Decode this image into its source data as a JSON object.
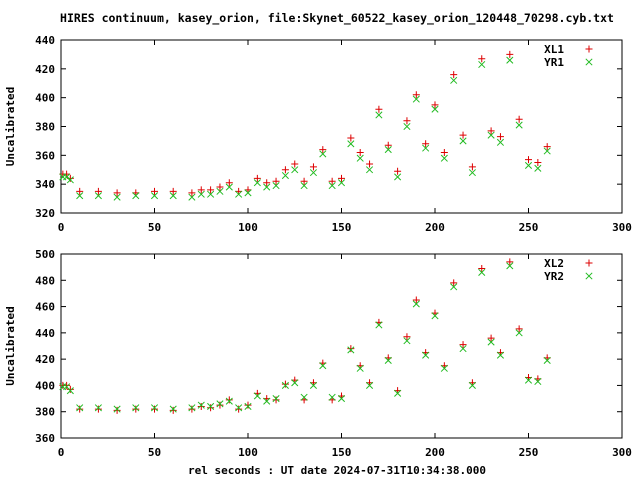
{
  "title": "HIRES continuum, kasey_orion, file:Skynet_60522_kasey_orion_120448_70298.cyb.txt",
  "xlabel": "rel seconds : UT date 2024-07-31T10:34:38.000",
  "colors": {
    "plus_series": "#dd0000",
    "x_series": "#22bb22"
  },
  "chart_data": [
    {
      "type": "scatter",
      "ylabel": "Uncalibrated",
      "xlim": [
        0,
        300
      ],
      "ylim": [
        320,
        440
      ],
      "xticks": [
        "0",
        "50",
        "100",
        "150",
        "200",
        "250",
        "300"
      ],
      "yticks": [
        "320",
        "340",
        "360",
        "380",
        "400",
        "420",
        "440"
      ],
      "legend_position": "top-right",
      "grid": false,
      "series": [
        {
          "name": "XL1",
          "marker": "plus",
          "x": [
            1,
            3,
            5,
            10,
            20,
            30,
            40,
            50,
            60,
            70,
            75,
            80,
            85,
            90,
            95,
            100,
            105,
            110,
            115,
            120,
            125,
            130,
            135,
            140,
            145,
            150,
            155,
            160,
            165,
            170,
            175,
            180,
            185,
            190,
            195,
            200,
            205,
            210,
            215,
            220,
            225,
            230,
            235,
            240,
            245,
            250,
            255,
            260
          ],
          "y": [
            347,
            347,
            344,
            335,
            335,
            334,
            334,
            335,
            335,
            334,
            336,
            336,
            338,
            341,
            335,
            336,
            344,
            341,
            342,
            350,
            354,
            342,
            352,
            364,
            342,
            344,
            372,
            362,
            354,
            392,
            367,
            349,
            384,
            402,
            368,
            395,
            362,
            416,
            374,
            352,
            427,
            377,
            373,
            430,
            385,
            357,
            355,
            366
          ]
        },
        {
          "name": "YR1",
          "marker": "cross",
          "x": [
            1,
            3,
            5,
            10,
            20,
            30,
            40,
            50,
            60,
            70,
            75,
            80,
            85,
            90,
            95,
            100,
            105,
            110,
            115,
            120,
            125,
            130,
            135,
            140,
            145,
            150,
            155,
            160,
            165,
            170,
            175,
            180,
            185,
            190,
            195,
            200,
            205,
            210,
            215,
            220,
            225,
            230,
            235,
            240,
            245,
            250,
            255,
            260
          ],
          "y": [
            345,
            345,
            343,
            332,
            332,
            331,
            332,
            332,
            332,
            331,
            333,
            333,
            335,
            338,
            333,
            334,
            341,
            338,
            339,
            346,
            350,
            339,
            348,
            361,
            339,
            341,
            368,
            358,
            350,
            388,
            364,
            345,
            380,
            399,
            365,
            392,
            358,
            412,
            370,
            348,
            423,
            374,
            369,
            426,
            381,
            353,
            351,
            363
          ]
        }
      ]
    },
    {
      "type": "scatter",
      "ylabel": "Uncalibrated",
      "xlim": [
        0,
        300
      ],
      "ylim": [
        360,
        500
      ],
      "xticks": [
        "0",
        "50",
        "100",
        "150",
        "200",
        "250",
        "300"
      ],
      "yticks": [
        "360",
        "380",
        "400",
        "420",
        "440",
        "460",
        "480",
        "500"
      ],
      "legend_position": "top-right",
      "grid": false,
      "series": [
        {
          "name": "XL2",
          "marker": "plus",
          "x": [
            1,
            3,
            5,
            10,
            20,
            30,
            40,
            50,
            60,
            70,
            75,
            80,
            85,
            90,
            95,
            100,
            105,
            110,
            115,
            120,
            125,
            130,
            135,
            140,
            145,
            150,
            155,
            160,
            165,
            170,
            175,
            180,
            185,
            190,
            195,
            200,
            205,
            210,
            215,
            220,
            225,
            230,
            235,
            240,
            245,
            250,
            255,
            260
          ],
          "y": [
            400,
            400,
            397,
            382,
            382,
            381,
            382,
            382,
            381,
            382,
            384,
            383,
            385,
            389,
            382,
            385,
            394,
            390,
            389,
            401,
            404,
            389,
            402,
            417,
            389,
            392,
            428,
            415,
            402,
            448,
            421,
            396,
            437,
            465,
            425,
            455,
            415,
            478,
            431,
            402,
            489,
            436,
            425,
            494,
            443,
            406,
            405,
            421
          ]
        },
        {
          "name": "YR2",
          "marker": "cross",
          "x": [
            1,
            3,
            5,
            10,
            20,
            30,
            40,
            50,
            60,
            70,
            75,
            80,
            85,
            90,
            95,
            100,
            105,
            110,
            115,
            120,
            125,
            130,
            135,
            140,
            145,
            150,
            155,
            160,
            165,
            170,
            175,
            180,
            185,
            190,
            195,
            200,
            205,
            210,
            215,
            220,
            225,
            230,
            235,
            240,
            245,
            250,
            255,
            260
          ],
          "y": [
            399,
            399,
            396,
            383,
            383,
            382,
            383,
            383,
            382,
            383,
            385,
            384,
            386,
            388,
            383,
            384,
            392,
            388,
            390,
            400,
            402,
            391,
            400,
            415,
            391,
            390,
            427,
            413,
            400,
            446,
            419,
            394,
            434,
            462,
            423,
            453,
            413,
            475,
            428,
            400,
            486,
            433,
            423,
            491,
            440,
            404,
            403,
            419
          ]
        }
      ]
    }
  ]
}
